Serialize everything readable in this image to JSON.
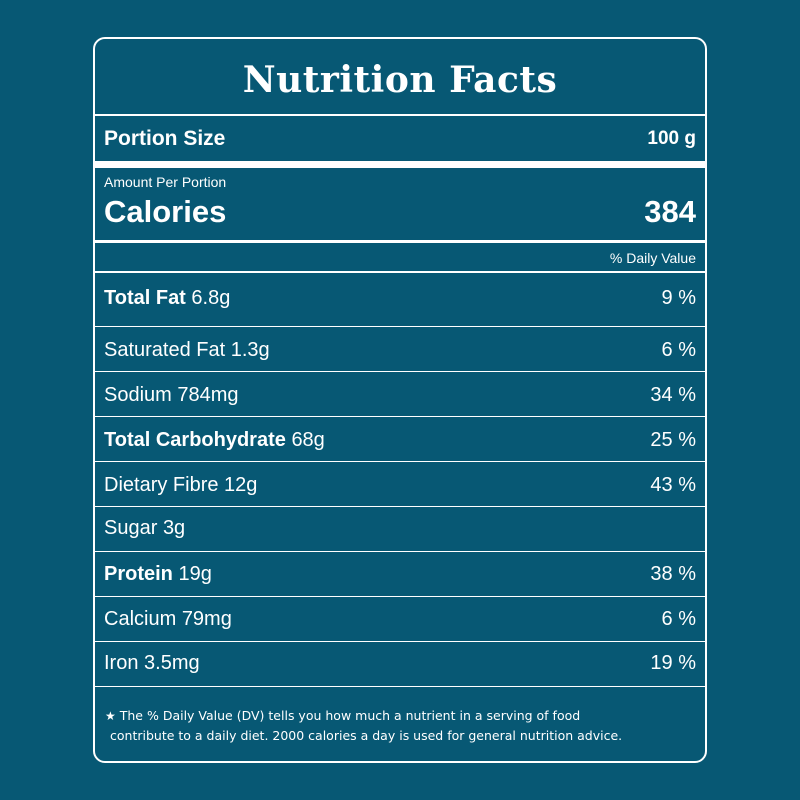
{
  "title": "Nutrition Facts",
  "portion": {
    "label": "Portion Size",
    "value": "100 g"
  },
  "calories": {
    "caption": "Amount Per Portion",
    "label": "Calories",
    "value": "384"
  },
  "daily_value_header": "% Daily Value",
  "nutrients": [
    {
      "name": "Total Fat",
      "amount": "6.8g",
      "dv": "9 %"
    },
    {
      "name": "Saturated Fat",
      "amount": "1.3g",
      "dv": "6 %"
    },
    {
      "name": "Sodium",
      "amount": "784mg",
      "dv": "34 %"
    },
    {
      "name": "Total Carbohydrate",
      "amount": "68g",
      "dv": "25 %"
    },
    {
      "name": "Dietary Fibre",
      "amount": "12g",
      "dv": "43 %"
    },
    {
      "name": "Sugar",
      "amount": "3g",
      "dv": ""
    },
    {
      "name": "Protein",
      "amount": "19g",
      "dv": "38 %"
    },
    {
      "name": "Calcium",
      "amount": "79mg",
      "dv": "6 %"
    },
    {
      "name": "Iron",
      "amount": "3.5mg",
      "dv": "19 %"
    }
  ],
  "footnote": {
    "star": "★",
    "line1": "The % Daily Value (DV) tells you how much a nutrient in a serving of food",
    "line2": "contribute to a daily diet. 2000 calories a day is used for general nutrition advice."
  },
  "colors": {
    "background": "#075874",
    "foreground": "#ffffff"
  }
}
